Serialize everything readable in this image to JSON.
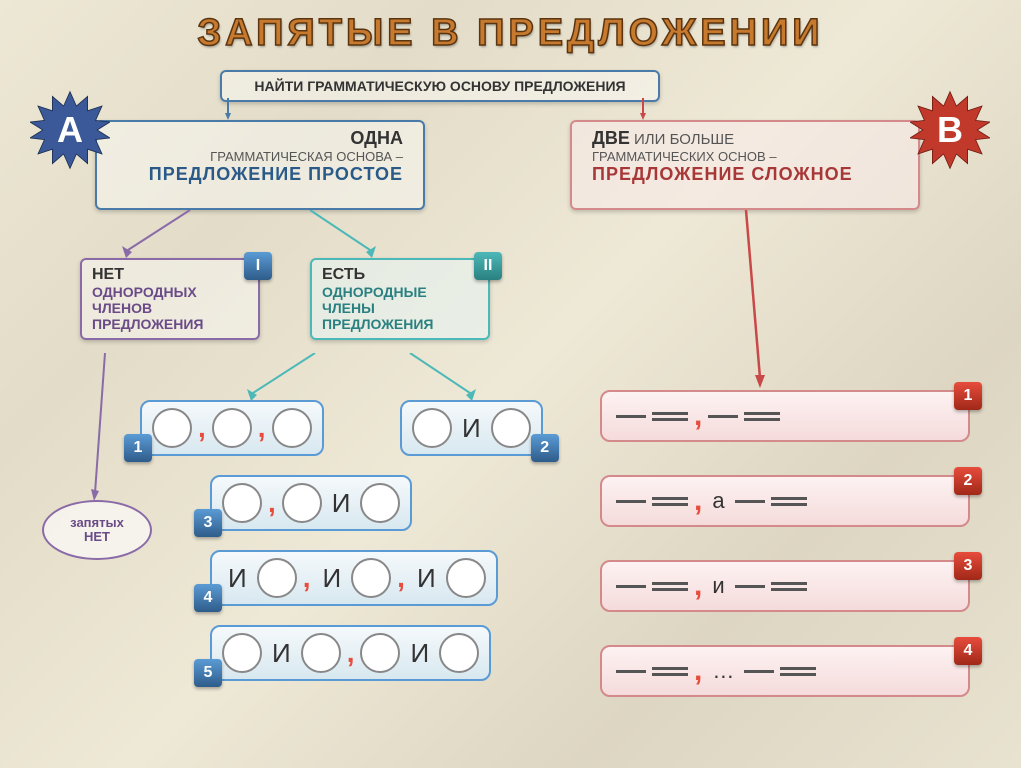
{
  "title": "ЗАПЯТЫЕ В ПРЕДЛОЖЕНИИ",
  "colors": {
    "title_fill": "#c77a2e",
    "title_stroke": "#5a3410",
    "blue": "#4a7ba8",
    "teal": "#4db8b8",
    "purple": "#8a6ba8",
    "red": "#c94848",
    "pink_border": "#d48a8a",
    "orange": "#e67e22",
    "star_a": "#3b5998",
    "star_b": "#c0392b"
  },
  "root_box": {
    "text": "НАЙТИ ГРАММАТИЧЕСКУЮ ОСНОВУ ПРЕДЛОЖЕНИЯ",
    "border": "#4a7ba8"
  },
  "star_a": "А",
  "star_b": "В",
  "box_a": {
    "line1_bold": "ОДНА",
    "line2": "ГРАММАТИЧЕСКАЯ ОСНОВА –",
    "line3_bold": "ПРЕДЛОЖЕНИЕ ПРОСТОЕ",
    "border": "#4a7ba8"
  },
  "box_b": {
    "line1_bold": "ДВЕ",
    "line1_rest": " ИЛИ БОЛЬШЕ",
    "line2": "ГРАММАТИЧЕСКИХ ОСНОВ –",
    "line3_bold": "ПРЕДЛОЖЕНИЕ СЛОЖНОЕ",
    "border": "#d48a8a"
  },
  "box_i": {
    "line1_bold": "НЕТ",
    "line2": "ОДНОРОДНЫХ",
    "line3": "ЧЛЕНОВ",
    "line4": "ПРЕДЛОЖЕНИЯ",
    "badge": "I",
    "border": "#8a6ba8"
  },
  "box_ii": {
    "line1_bold": "ЕСТЬ",
    "line2": "ОДНОРОДНЫЕ",
    "line3": "ЧЛЕНЫ",
    "line4": "ПРЕДЛОЖЕНИЯ",
    "badge": "II",
    "border": "#4db8b8"
  },
  "no_commas": {
    "line1": "запятых",
    "line2": "НЕТ"
  },
  "simple_patterns": [
    {
      "n": "1",
      "items": [
        "O",
        ",",
        "O",
        ",",
        "O"
      ]
    },
    {
      "n": "2",
      "items": [
        "O",
        "И",
        "O"
      ]
    },
    {
      "n": "3",
      "items": [
        "O",
        ",",
        "O",
        "И",
        "O"
      ]
    },
    {
      "n": "4",
      "items": [
        "И",
        "O",
        ",",
        "И",
        "O",
        ",",
        "И",
        "O"
      ]
    },
    {
      "n": "5",
      "items": [
        "O",
        "И",
        "O",
        ",",
        "O",
        "И",
        "O"
      ]
    }
  ],
  "complex_patterns": [
    {
      "n": "1",
      "seq": [
        "D",
        "L",
        ",",
        "D",
        "L"
      ]
    },
    {
      "n": "2",
      "seq": [
        "D",
        "L",
        ",",
        "а",
        "D",
        "L"
      ]
    },
    {
      "n": "3",
      "seq": [
        "D",
        "L",
        ",",
        "и",
        "D",
        "L"
      ]
    },
    {
      "n": "4",
      "seq": [
        "D",
        "L",
        ",",
        "…",
        "D",
        "L"
      ]
    }
  ]
}
